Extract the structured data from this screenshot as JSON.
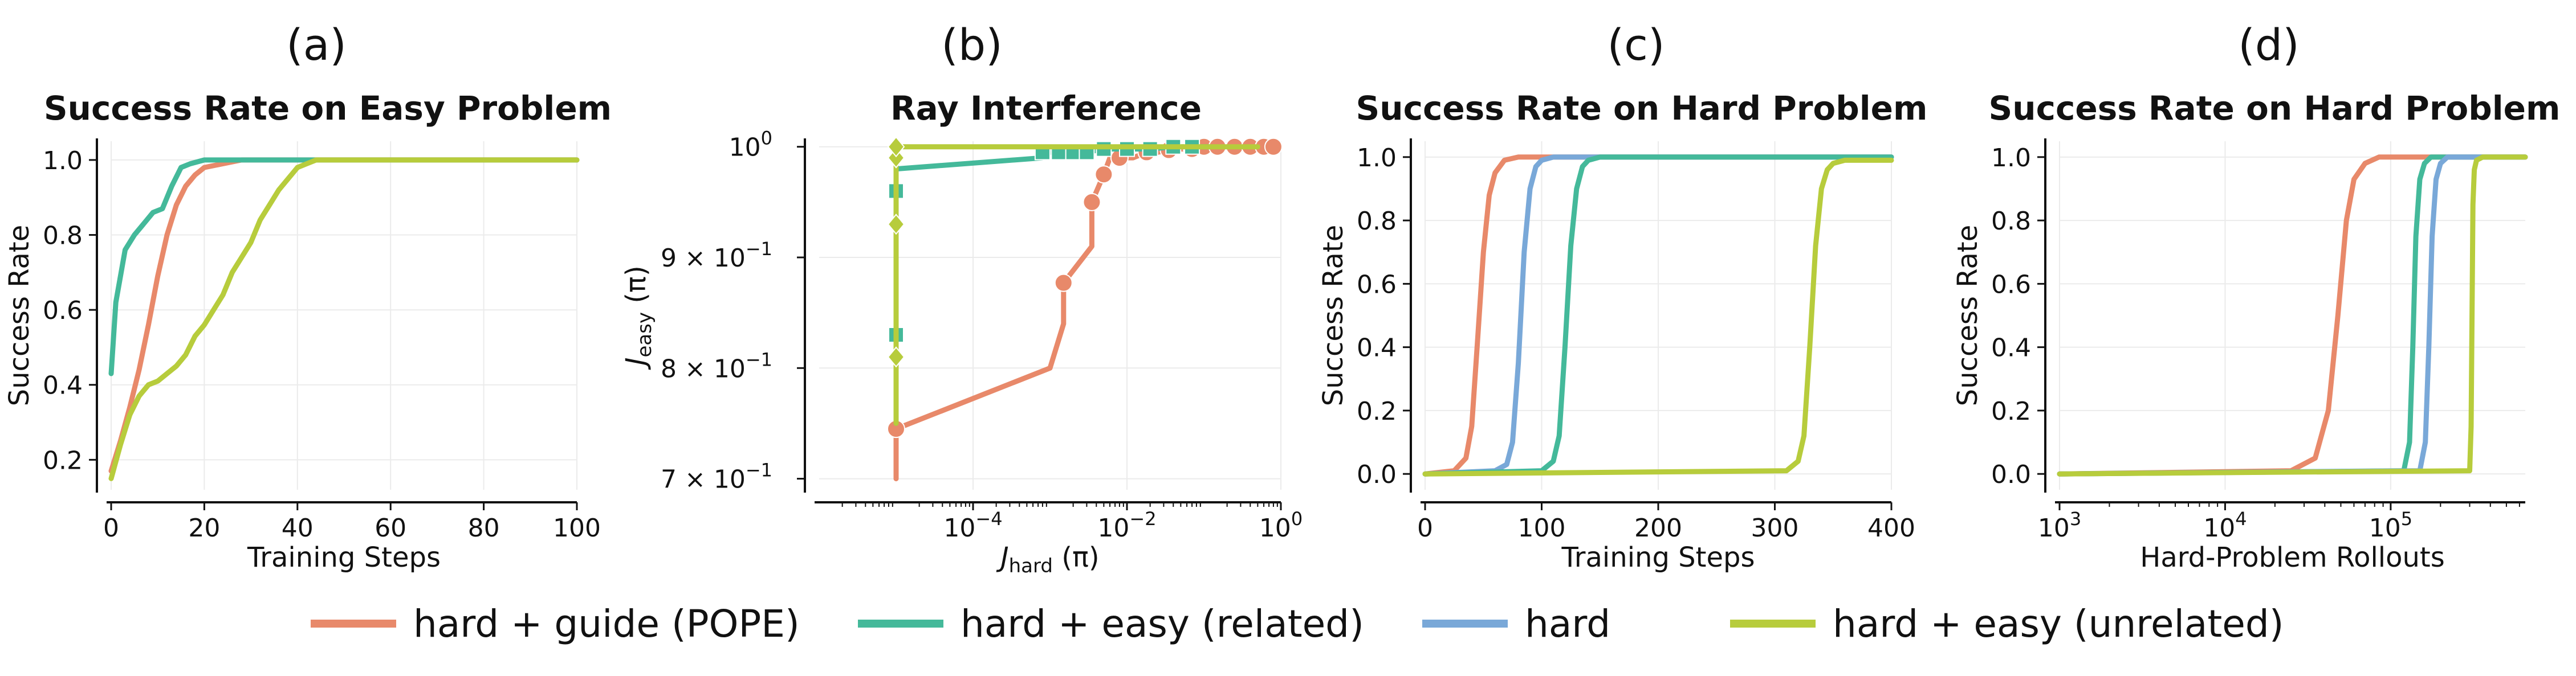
{
  "colors": {
    "pope": "#E8896A",
    "related": "#44B99A",
    "hard": "#79A8D8",
    "unrelated": "#B7CC3C",
    "axis": "#111111",
    "grid": "#EBEBEB"
  },
  "legend": [
    {
      "label": "hard + guide (POPE)",
      "color_key": "pope"
    },
    {
      "label": "hard + easy (related)",
      "color_key": "related"
    },
    {
      "label": "hard",
      "color_key": "hard"
    },
    {
      "label": "hard + easy (unrelated)",
      "color_key": "unrelated"
    }
  ],
  "chart_data": [
    {
      "panel": "(a)",
      "type": "line",
      "title": "Success Rate on Easy Problem",
      "xlabel": "Training Steps",
      "ylabel": "Success Rate",
      "xscale": "linear",
      "xlim": [
        0,
        100
      ],
      "ylim": [
        0.12,
        1.05
      ],
      "xticks": [
        0,
        20,
        40,
        60,
        80,
        100
      ],
      "xtick_labels": [
        "0",
        "20",
        "40",
        "60",
        "80",
        "100"
      ],
      "yticks": [
        0.2,
        0.4,
        0.6,
        0.8,
        1.0
      ],
      "ytick_labels": [
        "0.2",
        "0.4",
        "0.6",
        "0.8",
        "1.0"
      ],
      "series": [
        {
          "name": "hard + guide (POPE)",
          "color_key": "pope",
          "x": [
            0,
            2,
            4,
            6,
            8,
            10,
            12,
            14,
            16,
            18,
            20,
            24,
            28,
            34,
            40,
            100
          ],
          "y": [
            0.17,
            0.25,
            0.34,
            0.44,
            0.56,
            0.69,
            0.8,
            0.88,
            0.93,
            0.96,
            0.98,
            0.99,
            1.0,
            1.0,
            1.0,
            1.0
          ]
        },
        {
          "name": "hard + easy (related)",
          "color_key": "related",
          "x": [
            0,
            1,
            3,
            5,
            7,
            9,
            11,
            13,
            15,
            17,
            20,
            24,
            100
          ],
          "y": [
            0.43,
            0.62,
            0.76,
            0.8,
            0.83,
            0.86,
            0.87,
            0.93,
            0.98,
            0.99,
            1.0,
            1.0,
            1.0
          ]
        },
        {
          "name": "hard + easy (unrelated)",
          "color_key": "unrelated",
          "x": [
            0,
            2,
            4,
            6,
            8,
            10,
            12,
            14,
            16,
            18,
            20,
            22,
            24,
            26,
            28,
            30,
            32,
            34,
            36,
            38,
            40,
            42,
            44,
            48,
            60,
            100
          ],
          "y": [
            0.15,
            0.24,
            0.32,
            0.37,
            0.4,
            0.41,
            0.43,
            0.45,
            0.48,
            0.53,
            0.56,
            0.6,
            0.64,
            0.7,
            0.74,
            0.78,
            0.84,
            0.88,
            0.92,
            0.95,
            0.98,
            0.99,
            1.0,
            1.0,
            1.0,
            1.0
          ]
        }
      ]
    },
    {
      "panel": "(b)",
      "type": "line",
      "title": "Ray Interference",
      "xlabel_main": "J",
      "xlabel_sub": "hard",
      "xlabel_tail": " (π)",
      "ylabel_main": "J",
      "ylabel_sub": "easy",
      "ylabel_tail": " (π)",
      "xscale": "log",
      "xlim": [
        1e-06,
        1
      ],
      "ylim": [
        0.69,
        1.005
      ],
      "xticks": [
        0.0001,
        0.01,
        1
      ],
      "xtick_labels": [
        {
          "base": "10",
          "exp": "−4"
        },
        {
          "base": "10",
          "exp": "−2"
        },
        {
          "base": "10",
          "exp": "0"
        }
      ],
      "yticks": [
        0.7,
        0.8,
        0.9,
        1.0
      ],
      "ytick_labels": [
        {
          "base": "7 × 10",
          "exp": "−1"
        },
        {
          "base": "8 × 10",
          "exp": "−1"
        },
        {
          "base": "9 × 10",
          "exp": "−1"
        },
        {
          "base": "10",
          "exp": "0"
        }
      ],
      "series": [
        {
          "name": "hard + guide (POPE)",
          "color_key": "pope",
          "marker": "circle",
          "x": [
            1e-05,
            1e-05,
            0.001,
            0.0015,
            0.0015,
            0.0035,
            0.0035,
            0.005,
            0.006,
            0.008,
            0.012,
            0.018,
            0.025,
            0.035,
            0.05,
            0.07,
            0.1,
            0.15,
            0.25,
            0.4,
            0.6,
            0.8
          ],
          "y": [
            0.7,
            0.745,
            0.8,
            0.84,
            0.877,
            0.91,
            0.95,
            0.975,
            0.99,
            0.99,
            0.99,
            0.995,
            0.995,
            0.997,
            0.998,
            0.998,
            1.0,
            1.0,
            1.0,
            1.0,
            1.0,
            1.0
          ],
          "marker_indices": [
            1,
            4,
            6,
            7,
            9,
            11,
            13,
            15,
            16,
            17,
            18,
            19,
            20,
            21
          ]
        },
        {
          "name": "hard + easy (related)",
          "color_key": "related",
          "marker": "square",
          "x": [
            1e-05,
            1e-05,
            1e-05,
            1e-05,
            1e-05,
            0.0008,
            0.0008,
            0.0013,
            0.002,
            0.003,
            0.005,
            0.01,
            0.02,
            0.04,
            0.07,
            0.12
          ],
          "y": [
            0.75,
            0.83,
            0.96,
            0.975,
            0.98,
            0.99,
            0.995,
            0.995,
            0.995,
            0.995,
            0.998,
            0.998,
            0.998,
            1.0,
            1.0,
            1.0
          ],
          "marker_indices": [
            1,
            2,
            6,
            7,
            8,
            9,
            10,
            11,
            12,
            13,
            14
          ]
        },
        {
          "name": "hard + easy (unrelated)",
          "color_key": "unrelated",
          "marker": "diamond",
          "x": [
            1e-05,
            1e-05,
            1e-05,
            1e-05,
            1e-05,
            1e-05,
            0.001,
            0.01,
            0.05,
            0.2,
            0.5
          ],
          "y": [
            0.75,
            0.81,
            0.93,
            0.99,
            1.0,
            1.0,
            1.0,
            1.0,
            1.0,
            1.0,
            1.0
          ],
          "marker_indices": [
            1,
            2,
            3,
            4
          ]
        }
      ]
    },
    {
      "panel": "(c)",
      "type": "line",
      "title": "Success Rate on Hard Problem",
      "xlabel": "Training Steps",
      "ylabel": "Success Rate",
      "xscale": "linear",
      "xlim": [
        0,
        400
      ],
      "ylim": [
        -0.05,
        1.05
      ],
      "xticks": [
        0,
        100,
        200,
        300,
        400
      ],
      "xtick_labels": [
        "0",
        "100",
        "200",
        "300",
        "400"
      ],
      "yticks": [
        0.0,
        0.2,
        0.4,
        0.6,
        0.8,
        1.0
      ],
      "ytick_labels": [
        "0.0",
        "0.2",
        "0.4",
        "0.6",
        "0.8",
        "1.0"
      ],
      "series": [
        {
          "name": "hard + guide (POPE)",
          "color_key": "pope",
          "x": [
            0,
            25,
            35,
            40,
            45,
            50,
            55,
            60,
            68,
            80,
            400
          ],
          "y": [
            0,
            0.01,
            0.05,
            0.15,
            0.42,
            0.7,
            0.88,
            0.95,
            0.99,
            1.0,
            1.0
          ]
        },
        {
          "name": "hard",
          "color_key": "hard",
          "x": [
            0,
            60,
            70,
            75,
            80,
            85,
            90,
            95,
            100,
            110,
            400
          ],
          "y": [
            0,
            0.01,
            0.03,
            0.1,
            0.35,
            0.7,
            0.9,
            0.97,
            0.99,
            1.0,
            1.0
          ]
        },
        {
          "name": "hard + easy (related)",
          "color_key": "related",
          "x": [
            0,
            100,
            110,
            115,
            120,
            125,
            130,
            135,
            140,
            150,
            400
          ],
          "y": [
            0,
            0.01,
            0.04,
            0.12,
            0.4,
            0.72,
            0.9,
            0.97,
            0.99,
            1.0,
            1.0
          ]
        },
        {
          "name": "hard + easy (unrelated)",
          "color_key": "unrelated",
          "x": [
            0,
            310,
            320,
            325,
            330,
            335,
            340,
            345,
            350,
            360,
            400
          ],
          "y": [
            0,
            0.01,
            0.04,
            0.12,
            0.4,
            0.72,
            0.9,
            0.96,
            0.98,
            0.99,
            0.99
          ]
        }
      ]
    },
    {
      "panel": "(d)",
      "type": "line",
      "title": "Success Rate on Hard Problem",
      "xlabel": "Hard-Problem Rollouts",
      "ylabel": "Success Rate",
      "xscale": "log",
      "xlim": [
        1000,
        650000
      ],
      "ylim": [
        -0.05,
        1.05
      ],
      "xticks": [
        1000,
        10000,
        100000
      ],
      "xtick_labels": [
        {
          "base": "10",
          "exp": "3"
        },
        {
          "base": "10",
          "exp": "4"
        },
        {
          "base": "10",
          "exp": "5"
        }
      ],
      "yticks": [
        0.0,
        0.2,
        0.4,
        0.6,
        0.8,
        1.0
      ],
      "ytick_labels": [
        "0.0",
        "0.2",
        "0.4",
        "0.6",
        "0.8",
        "1.0"
      ],
      "series": [
        {
          "name": "hard + guide (POPE)",
          "color_key": "pope",
          "x": [
            1000,
            25000,
            35000,
            42000,
            48000,
            54000,
            60000,
            70000,
            85000,
            650000
          ],
          "y": [
            0,
            0.01,
            0.05,
            0.2,
            0.5,
            0.8,
            0.93,
            0.98,
            1.0,
            1.0
          ]
        },
        {
          "name": "hard + easy (related)",
          "color_key": "related",
          "x": [
            1000,
            120000,
            130000,
            136000,
            142000,
            150000,
            160000,
            175000,
            650000
          ],
          "y": [
            0,
            0.01,
            0.1,
            0.4,
            0.75,
            0.93,
            0.98,
            1.0,
            1.0
          ]
        },
        {
          "name": "hard",
          "color_key": "hard",
          "x": [
            1000,
            150000,
            162000,
            170000,
            178000,
            188000,
            200000,
            220000,
            650000
          ],
          "y": [
            0,
            0.01,
            0.1,
            0.4,
            0.75,
            0.93,
            0.98,
            1.0,
            1.0
          ]
        },
        {
          "name": "hard + easy (unrelated)",
          "color_key": "unrelated",
          "x": [
            1000,
            300000,
            306000,
            310000,
            314000,
            320000,
            330000,
            360000,
            650000
          ],
          "y": [
            0,
            0.01,
            0.15,
            0.5,
            0.85,
            0.96,
            0.99,
            1.0,
            1.0
          ]
        }
      ]
    }
  ]
}
